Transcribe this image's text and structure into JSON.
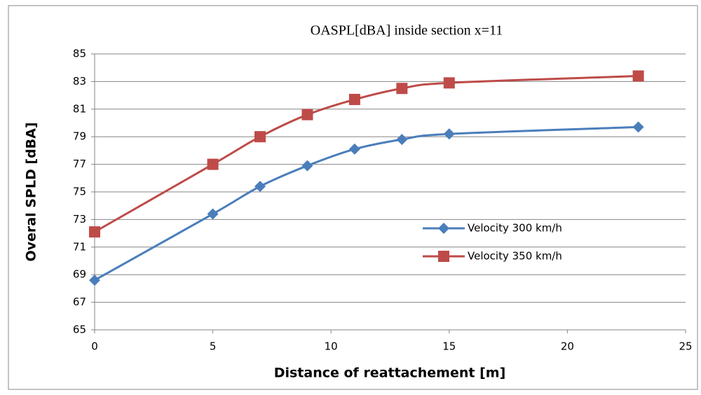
{
  "chart_data": {
    "type": "line",
    "title": "OASPL[dBA] inside section x=11",
    "x_label": "Distance of reattachement [m]",
    "y_label": "Overal SPLD [dBA]",
    "x": [
      0,
      5,
      7,
      9,
      11,
      13,
      15,
      23
    ],
    "series": [
      {
        "name": "Velocity 300 km/h",
        "color": "#4a7ebb",
        "marker": "diamond",
        "values": [
          68.6,
          73.4,
          75.4,
          76.9,
          78.1,
          78.8,
          79.2,
          79.7
        ]
      },
      {
        "name": "Velocity 350 km/h",
        "color": "#be4b48",
        "marker": "square",
        "values": [
          72.1,
          77.0,
          79.0,
          80.6,
          81.7,
          82.5,
          82.9,
          83.4
        ]
      }
    ],
    "xlim": [
      0,
      25
    ],
    "xticks": [
      0,
      5,
      10,
      15,
      20,
      25
    ],
    "ylim": [
      65,
      85
    ],
    "yticks": [
      65,
      67,
      69,
      71,
      73,
      75,
      77,
      79,
      81,
      83,
      85
    ],
    "grid": true,
    "smooth": true
  }
}
